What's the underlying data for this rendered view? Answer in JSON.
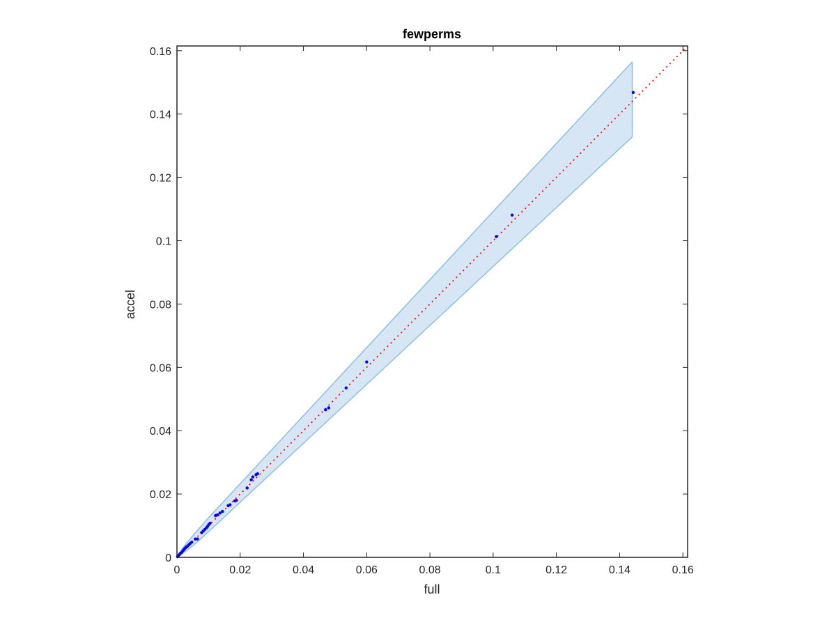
{
  "chart_data": {
    "type": "scatter",
    "title": "fewperms",
    "xlabel": "full",
    "ylabel": "accel",
    "xlim": [
      0,
      0.1615
    ],
    "ylim": [
      0,
      0.1615
    ],
    "xticks": [
      0,
      0.02,
      0.04,
      0.06,
      0.08,
      0.1,
      0.12,
      0.14,
      0.16
    ],
    "xtick_labels": [
      "0",
      "0.02",
      "0.04",
      "0.06",
      "0.08",
      "0.1",
      "0.12",
      "0.14",
      "0.16"
    ],
    "yticks": [
      0,
      0.02,
      0.04,
      0.06,
      0.08,
      0.1,
      0.12,
      0.14,
      0.16
    ],
    "ytick_labels": [
      "0",
      "0.02",
      "0.04",
      "0.06",
      "0.08",
      "0.1",
      "0.12",
      "0.14",
      "0.16"
    ],
    "grid": false,
    "reference_line": {
      "style": "dotted",
      "color": "#ff0000",
      "from": [
        0,
        0
      ],
      "to": [
        0.1615,
        0.1615
      ]
    },
    "band": {
      "fill": "#d6e6f4",
      "edge": "#8cc0e0",
      "upper": [
        [
          0,
          0
        ],
        [
          0.002,
          0.0032
        ],
        [
          0.005,
          0.0068
        ],
        [
          0.01,
          0.0125
        ],
        [
          0.144,
          0.1565
        ]
      ],
      "lower": [
        [
          0,
          0
        ],
        [
          0.005,
          0.0036
        ],
        [
          0.01,
          0.0081
        ],
        [
          0.144,
          0.1328
        ]
      ]
    },
    "marker_color": "#0000ff",
    "points": [
      [
        0.0002,
        0.0002
      ],
      [
        0.0005,
        0.0006
      ],
      [
        0.0008,
        0.0009
      ],
      [
        0.001,
        0.0012
      ],
      [
        0.0013,
        0.0014
      ],
      [
        0.0016,
        0.0017
      ],
      [
        0.002,
        0.0022
      ],
      [
        0.0023,
        0.0026
      ],
      [
        0.0027,
        0.003
      ],
      [
        0.003,
        0.0033
      ],
      [
        0.0034,
        0.0036
      ],
      [
        0.0038,
        0.004
      ],
      [
        0.0042,
        0.0044
      ],
      [
        0.0047,
        0.0048
      ],
      [
        0.0058,
        0.0058
      ],
      [
        0.0065,
        0.0058
      ],
      [
        0.0078,
        0.0078
      ],
      [
        0.0083,
        0.0083
      ],
      [
        0.0088,
        0.0088
      ],
      [
        0.0093,
        0.0093
      ],
      [
        0.0097,
        0.0098
      ],
      [
        0.0101,
        0.0104
      ],
      [
        0.0105,
        0.0108
      ],
      [
        0.0122,
        0.0132
      ],
      [
        0.0128,
        0.0134
      ],
      [
        0.0136,
        0.014
      ],
      [
        0.0144,
        0.0145
      ],
      [
        0.0162,
        0.0163
      ],
      [
        0.0168,
        0.0166
      ],
      [
        0.0183,
        0.0178
      ],
      [
        0.0188,
        0.018
      ],
      [
        0.0222,
        0.0219
      ],
      [
        0.0235,
        0.0245
      ],
      [
        0.024,
        0.0254
      ],
      [
        0.025,
        0.0261
      ],
      [
        0.0255,
        0.0264
      ],
      [
        0.047,
        0.0466
      ],
      [
        0.048,
        0.0472
      ],
      [
        0.0535,
        0.0535
      ],
      [
        0.06,
        0.0617
      ],
      [
        0.101,
        0.1013
      ],
      [
        0.106,
        0.1081
      ],
      [
        0.1443,
        0.1468
      ]
    ]
  }
}
